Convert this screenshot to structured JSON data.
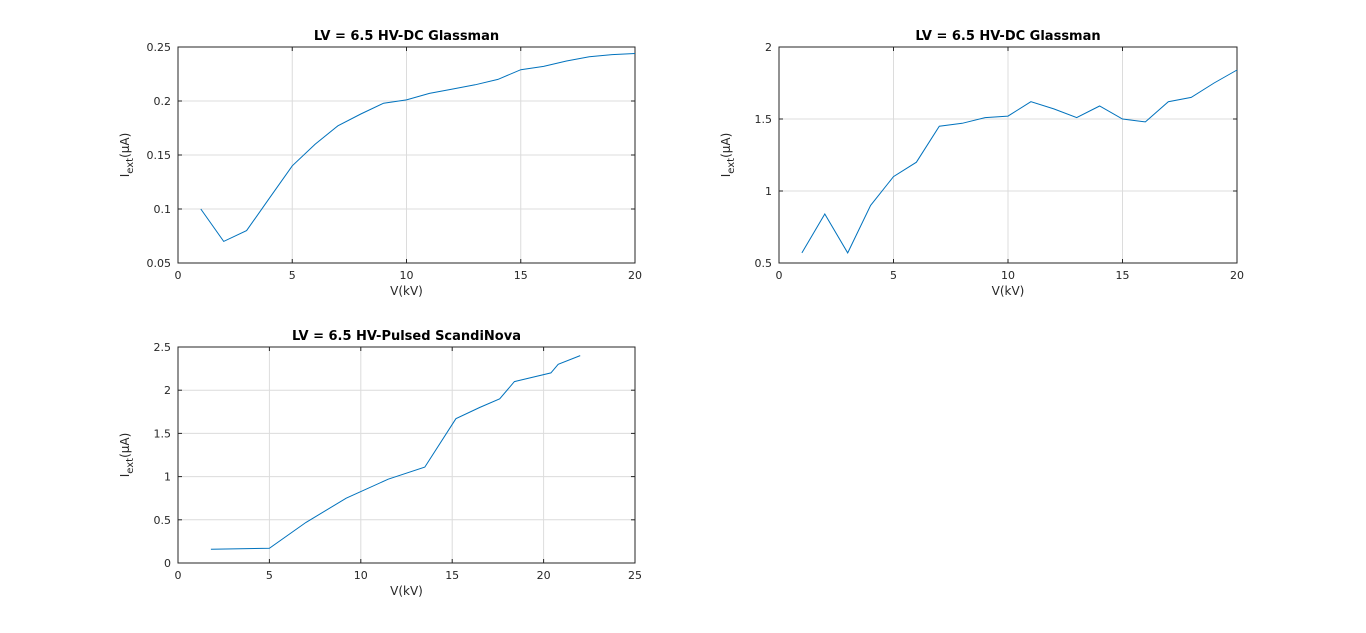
{
  "colors": {
    "series": "#0072bd"
  },
  "chart_data": [
    {
      "type": "line",
      "title": "LV = 6.5 HV-DC Glassman",
      "xlabel": "V(kV)",
      "ylabel": {
        "main": "I",
        "sub": "ext",
        "unit": "(μA)"
      },
      "xlim": [
        0,
        20
      ],
      "ylim": [
        0.05,
        0.25
      ],
      "xticks": [
        0,
        5,
        10,
        15,
        20
      ],
      "yticks": [
        0.05,
        0.1,
        0.15,
        0.2,
        0.25
      ],
      "xtick_labels": [
        "0",
        "5",
        "10",
        "15",
        "20"
      ],
      "ytick_labels": [
        "0.05",
        "0.1",
        "0.15",
        "0.2",
        "0.25"
      ],
      "grid": true,
      "series": [
        {
          "x": [
            1,
            2,
            3,
            4,
            5,
            6,
            7,
            8,
            9,
            10,
            11,
            12,
            13,
            14,
            15,
            16,
            17,
            18,
            19,
            20
          ],
          "y": [
            0.1,
            0.07,
            0.08,
            0.11,
            0.14,
            0.16,
            0.177,
            0.188,
            0.198,
            0.201,
            0.207,
            0.211,
            0.215,
            0.22,
            0.229,
            0.232,
            0.237,
            0.241,
            0.243,
            0.244
          ]
        }
      ]
    },
    {
      "type": "line",
      "title": "LV = 6.5 HV-DC Glassman",
      "xlabel": "V(kV)",
      "ylabel": {
        "main": "I",
        "sub": "ext",
        "unit": "(μA)"
      },
      "xlim": [
        0,
        20
      ],
      "ylim": [
        0.5,
        2
      ],
      "xticks": [
        0,
        5,
        10,
        15,
        20
      ],
      "yticks": [
        0.5,
        1,
        1.5,
        2
      ],
      "xtick_labels": [
        "0",
        "5",
        "10",
        "15",
        "20"
      ],
      "ytick_labels": [
        "0.5",
        "1",
        "1.5",
        "2"
      ],
      "grid": true,
      "series": [
        {
          "x": [
            1,
            2,
            3,
            4,
            5,
            6,
            7,
            8,
            9,
            10,
            11,
            12,
            13,
            14,
            15,
            16,
            17,
            18,
            19,
            20
          ],
          "y": [
            0.57,
            0.84,
            0.57,
            0.9,
            1.1,
            1.2,
            1.45,
            1.47,
            1.51,
            1.52,
            1.62,
            1.57,
            1.51,
            1.59,
            1.5,
            1.48,
            1.62,
            1.65,
            1.75,
            1.84
          ]
        }
      ]
    },
    {
      "type": "line",
      "title": "LV = 6.5 HV-Pulsed ScandiNova",
      "xlabel": "V(kV)",
      "ylabel": {
        "main": "I",
        "sub": "ext",
        "unit": "(μA)"
      },
      "xlim": [
        0,
        25
      ],
      "ylim": [
        0,
        2.5
      ],
      "xticks": [
        0,
        5,
        10,
        15,
        20,
        25
      ],
      "yticks": [
        0,
        0.5,
        1,
        1.5,
        2,
        2.5
      ],
      "xtick_labels": [
        "0",
        "5",
        "10",
        "15",
        "20",
        "25"
      ],
      "ytick_labels": [
        "0",
        "0.5",
        "1",
        "1.5",
        "2",
        "2.5"
      ],
      "grid": true,
      "series": [
        {
          "x": [
            1.8,
            5,
            7,
            9.2,
            11.5,
            13.5,
            15.2,
            16.5,
            17.6,
            18.4,
            20.4,
            20.8,
            22
          ],
          "y": [
            0.16,
            0.17,
            0.47,
            0.75,
            0.97,
            1.11,
            1.67,
            1.8,
            1.9,
            2.1,
            2.2,
            2.3,
            2.4
          ]
        }
      ]
    }
  ]
}
